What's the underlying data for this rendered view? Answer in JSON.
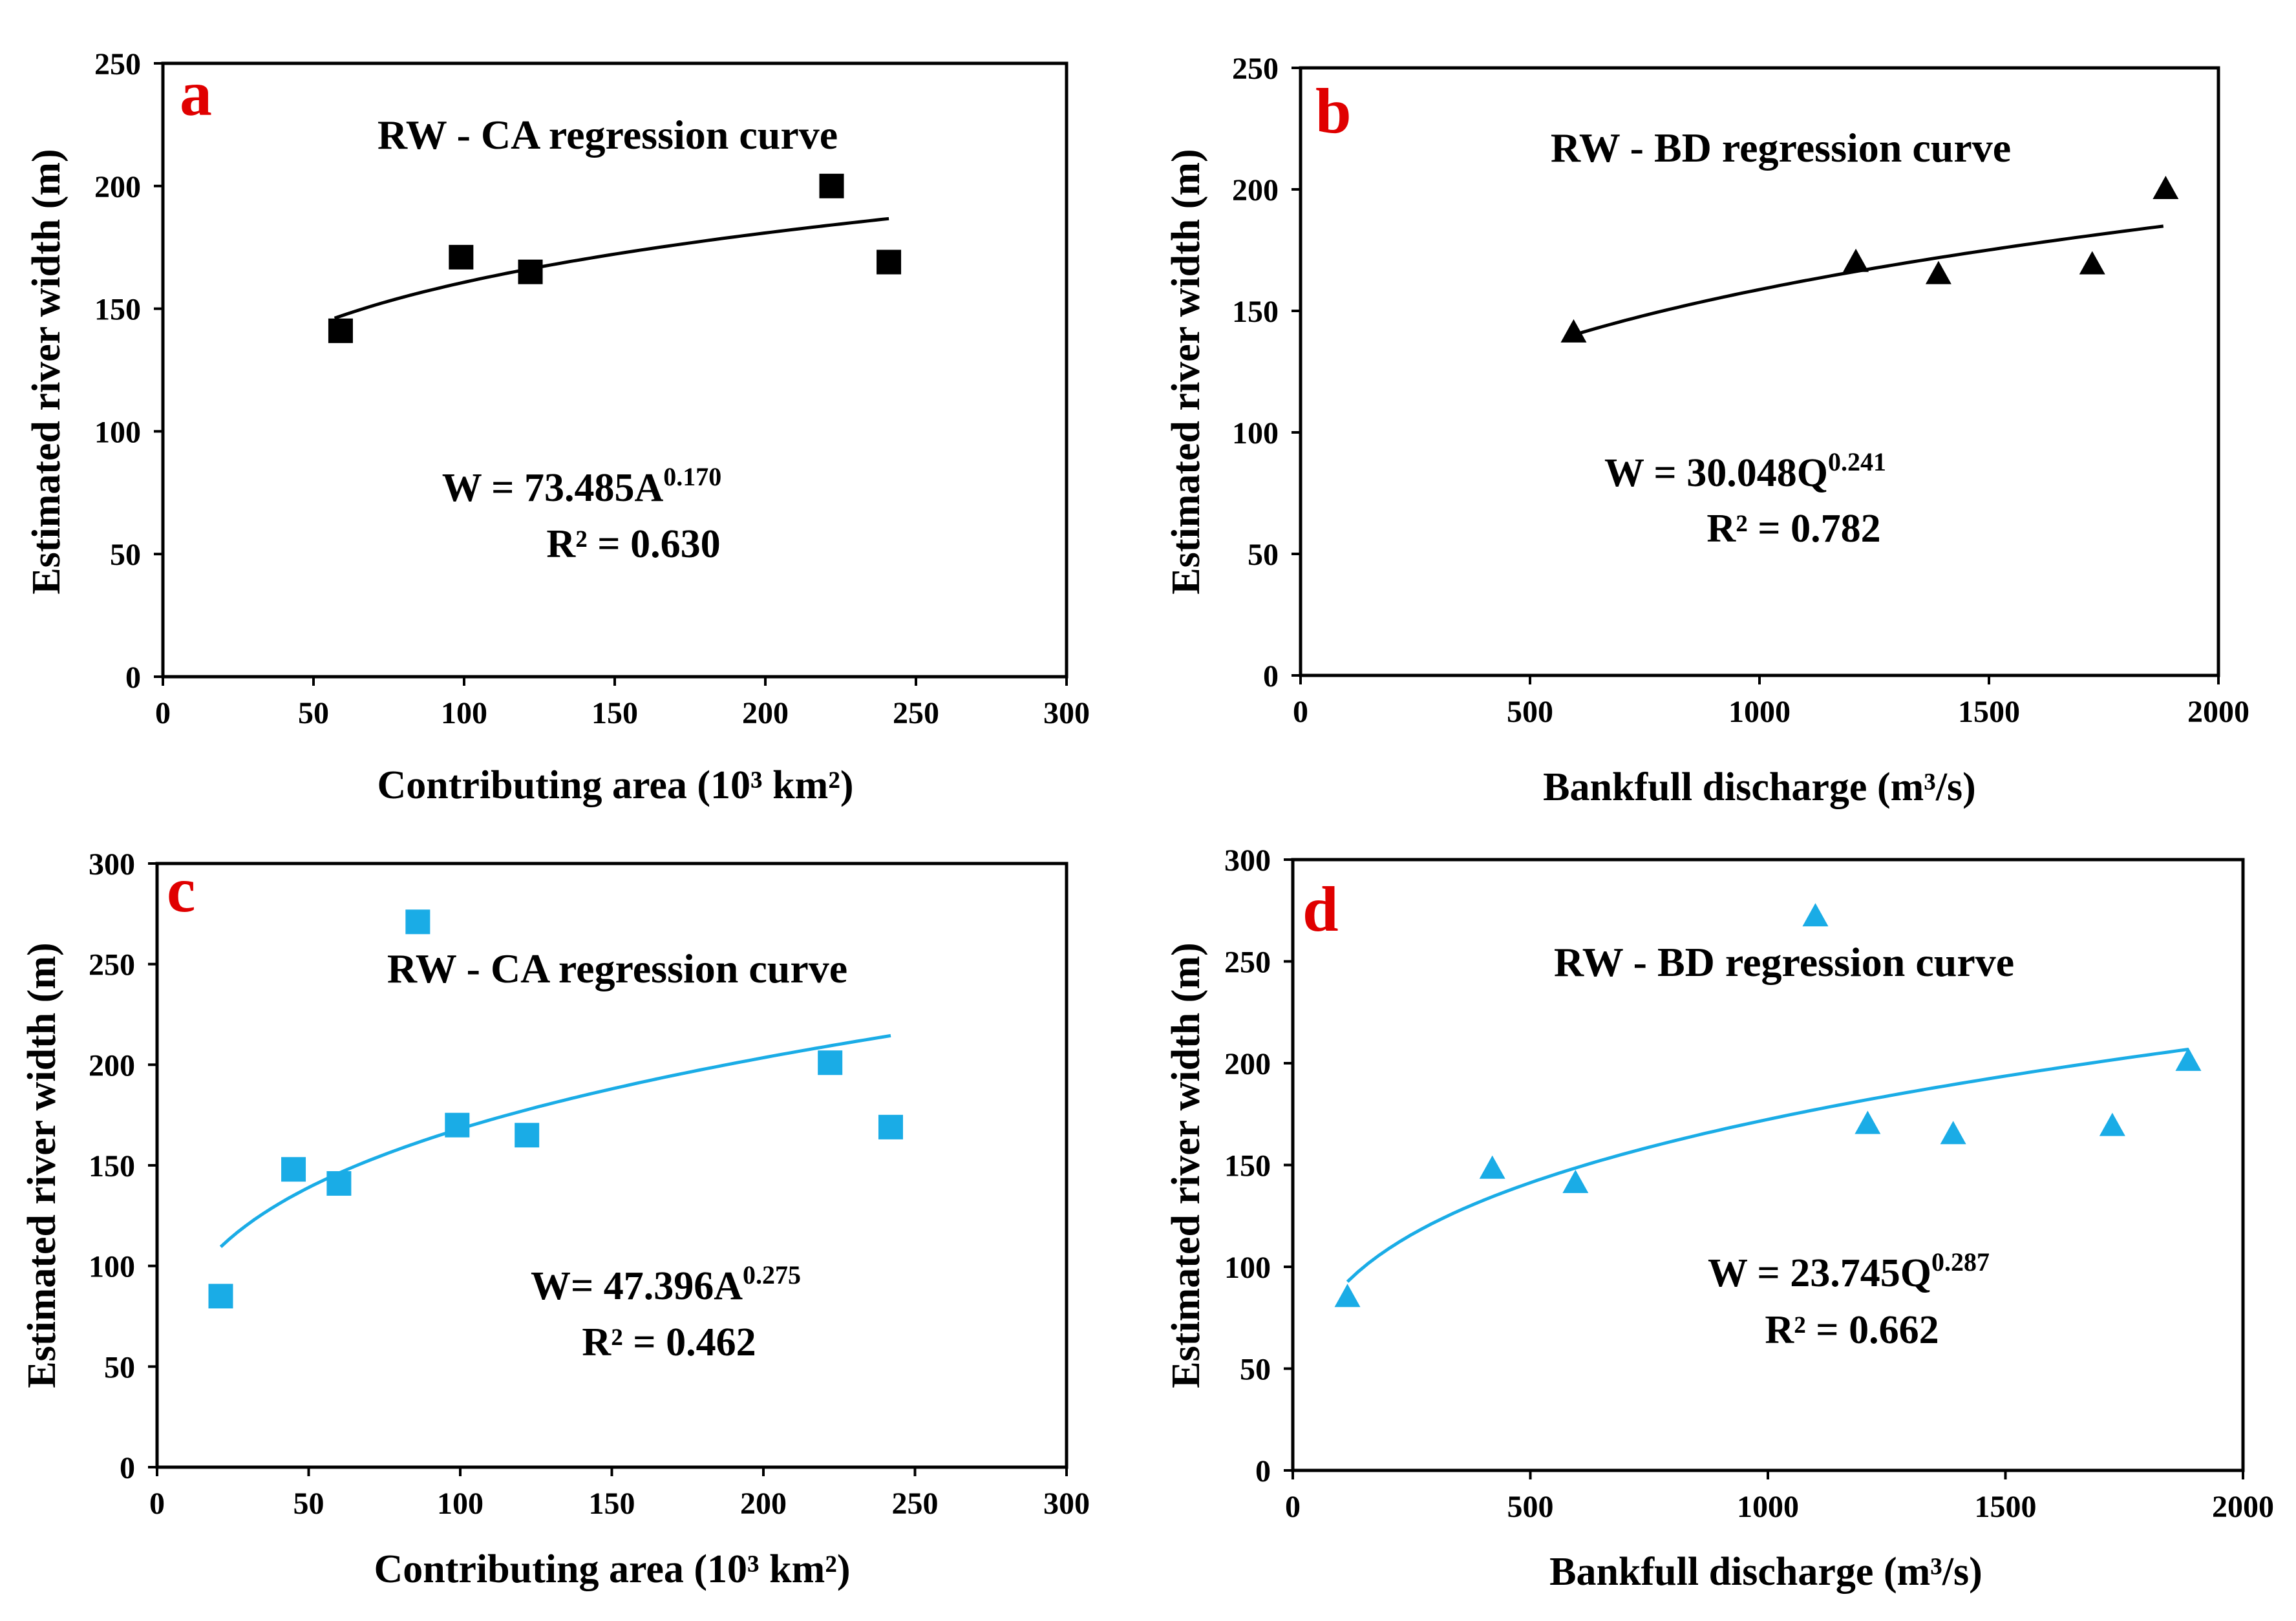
{
  "chart_data": [
    {
      "type": "scatter",
      "panel_label": "a",
      "title": "RW - CA  regression curve",
      "xlabel": "Contributing area (10³ km²)",
      "ylabel": "Estimated river width (m)",
      "xlim": [
        0,
        300
      ],
      "ylim": [
        0,
        250
      ],
      "xticks": [
        "0",
        "50",
        "100",
        "150",
        "200",
        "250",
        "300"
      ],
      "yticks": [
        "0",
        "50",
        "100",
        "150",
        "200",
        "250"
      ],
      "marker": "square",
      "color": "#000000",
      "points": [
        {
          "x": 59,
          "y": 141
        },
        {
          "x": 99,
          "y": 171
        },
        {
          "x": 122,
          "y": 165
        },
        {
          "x": 222,
          "y": 200
        },
        {
          "x": 241,
          "y": 169
        }
      ],
      "fit": {
        "coef": 73.485,
        "exp": 0.17,
        "x_range": [
          57,
          241
        ]
      },
      "equation_main": "W = 73.485A",
      "equation_exp": "0.170",
      "r2_text": "R² = 0.630",
      "grid": false
    },
    {
      "type": "scatter",
      "panel_label": "b",
      "title": "RW - BD  regression curve",
      "xlabel": "Bankfull discharge (m³/s)",
      "ylabel": "Estimated river width (m)",
      "xlim": [
        0,
        2000
      ],
      "ylim": [
        0,
        250
      ],
      "xticks": [
        "0",
        "500",
        "1000",
        "1500",
        "2000"
      ],
      "yticks": [
        "0",
        "50",
        "100",
        "150",
        "200",
        "250"
      ],
      "marker": "triangle",
      "color": "#000000",
      "points": [
        {
          "x": 595,
          "y": 141
        },
        {
          "x": 1210,
          "y": 170
        },
        {
          "x": 1390,
          "y": 165
        },
        {
          "x": 1725,
          "y": 169
        },
        {
          "x": 1885,
          "y": 200
        }
      ],
      "fit": {
        "coef": 30.048,
        "exp": 0.241,
        "x_range": [
          595,
          1880
        ]
      },
      "equation_main": "W = 30.048Q",
      "equation_exp": "0.241",
      "r2_text": "R² = 0.782",
      "grid": false
    },
    {
      "type": "scatter",
      "panel_label": "c",
      "title": "RW - CA  regression curve",
      "xlabel": "Contributing area (10³ km²)",
      "ylabel": "Estimated river width (m)",
      "xlim": [
        0,
        300
      ],
      "ylim": [
        0,
        300
      ],
      "xticks": [
        "0",
        "50",
        "100",
        "150",
        "200",
        "250",
        "300"
      ],
      "yticks": [
        "0",
        "50",
        "100",
        "150",
        "200",
        "250",
        "300"
      ],
      "marker": "square",
      "color": "#1aace6",
      "points": [
        {
          "x": 21,
          "y": 85
        },
        {
          "x": 45,
          "y": 148
        },
        {
          "x": 60,
          "y": 141
        },
        {
          "x": 86,
          "y": 271
        },
        {
          "x": 99,
          "y": 170
        },
        {
          "x": 122,
          "y": 165
        },
        {
          "x": 222,
          "y": 201
        },
        {
          "x": 242,
          "y": 169
        }
      ],
      "fit": {
        "coef": 47.396,
        "exp": 0.275,
        "x_range": [
          21,
          242
        ]
      },
      "equation_main": "W= 47.396A",
      "equation_exp": "0.275",
      "r2_text": "R² = 0.462",
      "grid": false
    },
    {
      "type": "scatter",
      "panel_label": "d",
      "title": "RW - BD  regression curve",
      "xlabel": "Bankfull discharge (m³/s)",
      "ylabel": "Estimated river width (m)",
      "xlim": [
        0,
        2000
      ],
      "ylim": [
        0,
        300
      ],
      "xticks": [
        "0",
        "500",
        "1000",
        "1500",
        "2000"
      ],
      "yticks": [
        "0",
        "50",
        "100",
        "150",
        "200",
        "250",
        "300"
      ],
      "marker": "triangle",
      "color": "#1aace6",
      "points": [
        {
          "x": 115,
          "y": 85
        },
        {
          "x": 420,
          "y": 148
        },
        {
          "x": 595,
          "y": 141
        },
        {
          "x": 1100,
          "y": 272
        },
        {
          "x": 1210,
          "y": 170
        },
        {
          "x": 1390,
          "y": 165
        },
        {
          "x": 1725,
          "y": 169
        },
        {
          "x": 1885,
          "y": 201
        }
      ],
      "fit": {
        "coef": 23.745,
        "exp": 0.287,
        "x_range": [
          115,
          1885
        ]
      },
      "equation_main": "W = 23.745Q",
      "equation_exp": "0.287",
      "r2_text": "R² = 0.662",
      "grid": false
    }
  ]
}
